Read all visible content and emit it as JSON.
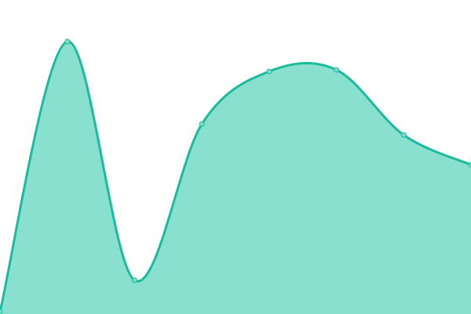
{
  "chart_data": {
    "type": "area",
    "x": [
      0,
      1,
      2,
      3,
      4,
      5,
      6,
      7
    ],
    "values": [
      3,
      347,
      43,
      242,
      309,
      311,
      228,
      190
    ],
    "ylim": [
      0,
      400
    ],
    "xlim": [
      0,
      7
    ],
    "grid": false,
    "smooth": true,
    "markers": true,
    "colors": {
      "line": "#1abc9c",
      "fill": "#89e0cf",
      "marker_fill": "#7ddcc8"
    }
  }
}
